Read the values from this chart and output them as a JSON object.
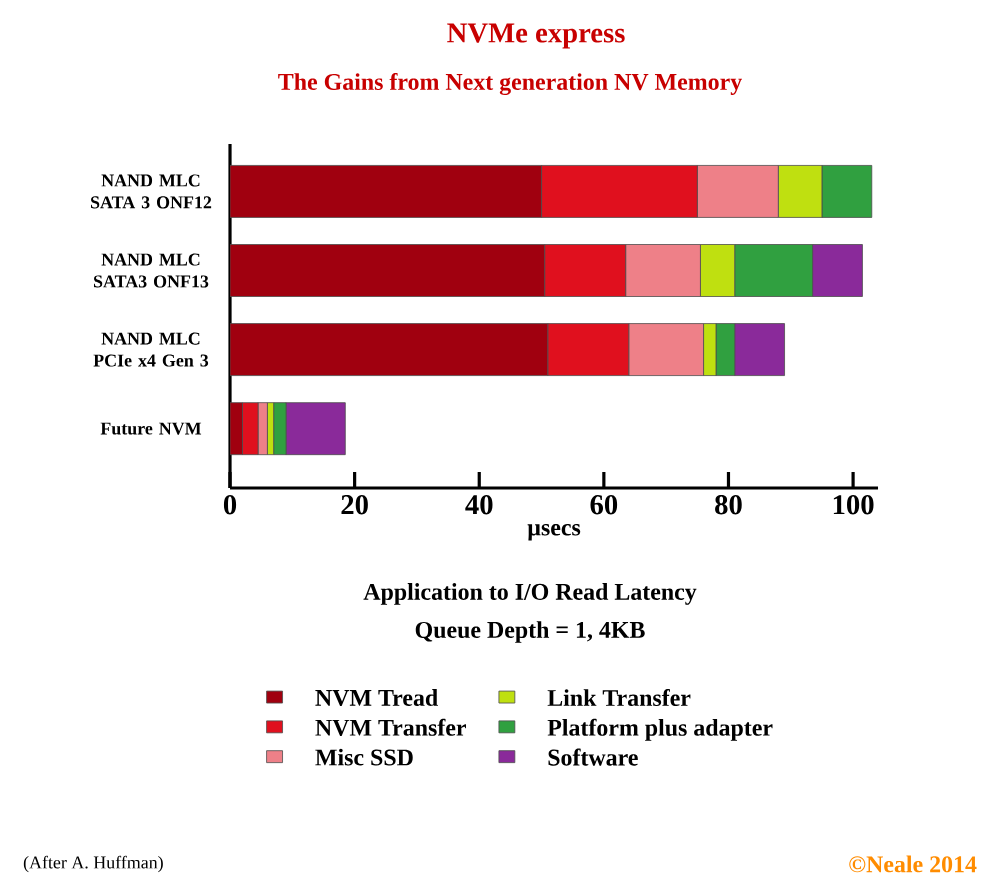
{
  "chart_data": {
    "type": "bar",
    "orientation": "horizontal",
    "stacked": true,
    "title": "NVMe express",
    "subtitle": "The Gains from Next generation NV Memory",
    "xlabel": "µsecs",
    "categories": [
      "NAND MLC SATA 3 ONF12",
      "NAND MLC SATA3 ONF13",
      "NAND  MLC PCIe x4 Gen 3",
      "Future NVM"
    ],
    "series": [
      {
        "name": "NVM Tread",
        "color": "#a0000f",
        "values": [
          50,
          50.5,
          51,
          2
        ]
      },
      {
        "name": "NVM Transfer",
        "color": "#e0101e",
        "values": [
          25,
          13,
          13,
          2.5
        ]
      },
      {
        "name": "Misc SSD",
        "color": "#ee8088",
        "values": [
          13,
          12,
          12,
          1.5
        ]
      },
      {
        "name": "Link Transfer",
        "color": "#bfe010",
        "values": [
          7,
          5.5,
          2,
          1
        ]
      },
      {
        "name": "Platform plus adapter",
        "color": "#30a040",
        "values": [
          8,
          12.5,
          3,
          2
        ]
      },
      {
        "name": "Software",
        "color": "#8a2a9a",
        "values": [
          0,
          8,
          8,
          9.5
        ]
      }
    ],
    "xlim": [
      0,
      104
    ],
    "xticks": [
      0,
      20,
      40,
      60,
      80,
      100
    ],
    "legend": "bottom",
    "annotations": [
      "Application to I/O Read Latency",
      "Queue Depth = 1,  4KB",
      "(After A. Huffman)",
      "©Neale 2014"
    ]
  }
}
